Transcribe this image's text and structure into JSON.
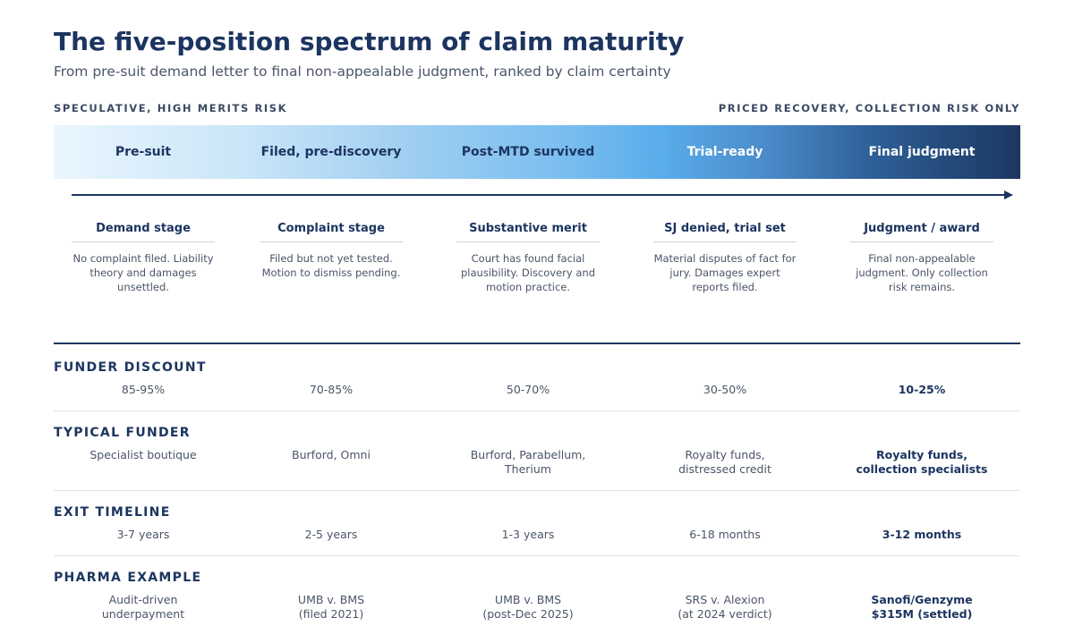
{
  "header": {
    "title": "The five-position spectrum of claim maturity",
    "subtitle": "From pre-suit demand letter to final non-appealable judgment, ranked by claim certainty"
  },
  "spectrum": {
    "left_label": "SPECULATIVE, HIGH MERITS RISK",
    "right_label": "PRICED RECOVERY, COLLECTION RISK ONLY",
    "stages": [
      "Pre-suit",
      "Filed, pre-discovery",
      "Post-MTD survived",
      "Trial-ready",
      "Final judgment"
    ]
  },
  "cards": [
    {
      "title": "Demand stage",
      "desc": "No complaint filed. Liability theory and damages unsettled."
    },
    {
      "title": "Complaint stage",
      "desc": "Filed but not yet tested. Motion to dismiss pending."
    },
    {
      "title": "Substantive merit",
      "desc": "Court has found facial plausibility. Discovery and motion practice."
    },
    {
      "title": "SJ denied, trial set",
      "desc": "Material disputes of fact for jury. Damages expert reports filed."
    },
    {
      "title": "Judgment / award",
      "desc": "Final non-appealable judgment. Only collection risk remains."
    }
  ],
  "rows": [
    {
      "label": "FUNDER DISCOUNT",
      "cells": [
        [
          "85-95%"
        ],
        [
          "70-85%"
        ],
        [
          "50-70%"
        ],
        [
          "30-50%"
        ],
        [
          "10-25%"
        ]
      ]
    },
    {
      "label": "TYPICAL FUNDER",
      "cells": [
        [
          "Specialist boutique"
        ],
        [
          "Burford, Omni"
        ],
        [
          "Burford, Parabellum,",
          "Therium"
        ],
        [
          "Royalty funds,",
          "distressed credit"
        ],
        [
          "Royalty funds,",
          "collection specialists"
        ]
      ]
    },
    {
      "label": "EXIT TIMELINE",
      "cells": [
        [
          "3-7 years"
        ],
        [
          "2-5 years"
        ],
        [
          "1-3 years"
        ],
        [
          "6-18 months"
        ],
        [
          "3-12 months"
        ]
      ]
    },
    {
      "label": "PHARMA EXAMPLE",
      "cells": [
        [
          "Audit-driven",
          "underpayment"
        ],
        [
          "UMB v. BMS",
          "(filed 2021)"
        ],
        [
          "UMB v. BMS",
          "(post-Dec 2025)"
        ],
        [
          "SRS v. Alexion",
          "(at 2024 verdict)"
        ],
        [
          "Sanofi/Genzyme",
          "$315M (settled)"
        ]
      ]
    }
  ],
  "colors": {
    "navy": "#1c3560",
    "band_light": "#eaf6fe",
    "band_mid": "#5aacea",
    "band_dark": "#1b3761"
  }
}
